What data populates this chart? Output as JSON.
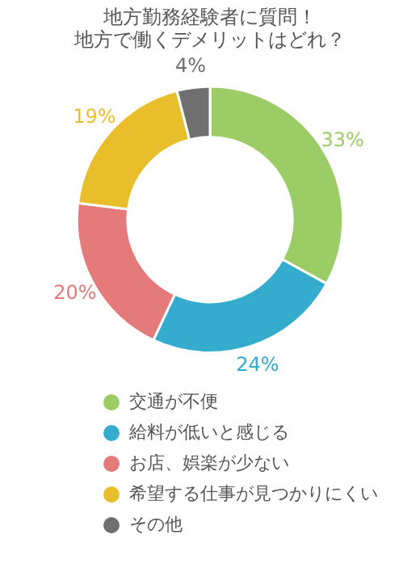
{
  "chart_data": {
    "type": "donut",
    "title": "地方勤務経験者に質問！",
    "subtitle": "地方で働くデメリットはどれ？",
    "categories": [
      "交通が不便",
      "給料が低いと感じる",
      "お店、娯楽が少ない",
      "希望する仕事が見つかりにくい",
      "その他"
    ],
    "values": [
      33,
      24,
      20,
      19,
      4
    ],
    "value_labels": [
      "33%",
      "24%",
      "20%",
      "19%",
      "4%"
    ],
    "colors": [
      "#9ccc65",
      "#35acce",
      "#e57a7a",
      "#e8bf2a",
      "#6f6f6f"
    ],
    "legend": "bottom"
  }
}
